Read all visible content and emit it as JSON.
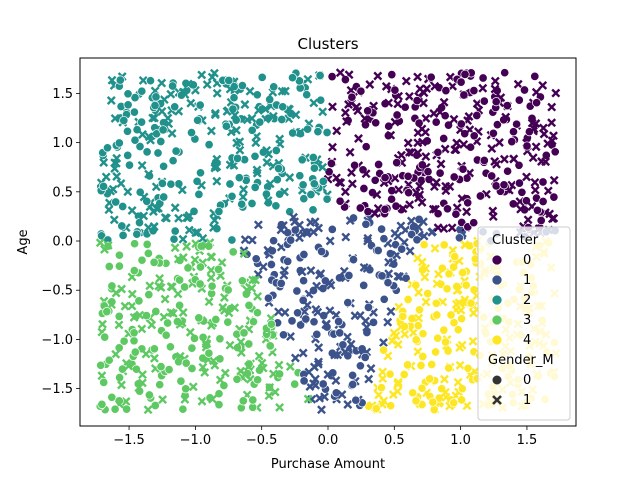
{
  "chart_data": {
    "type": "scatter",
    "title": "Clusters",
    "xlabel": "Purchase Amount",
    "ylabel": "Age",
    "xlim": [
      -1.87,
      1.87
    ],
    "ylim": [
      -1.88,
      1.86
    ],
    "xticks": [
      -1.5,
      -1.0,
      -0.5,
      0.0,
      0.5,
      1.0,
      1.5
    ],
    "xtick_labels": [
      "−1.5",
      "−1.0",
      "−0.5",
      "0.0",
      "0.5",
      "1.0",
      "1.5"
    ],
    "yticks": [
      -1.5,
      -1.0,
      -0.5,
      0.0,
      0.5,
      1.0,
      1.5
    ],
    "ytick_labels": [
      "−1.5",
      "−1.0",
      "−0.5",
      "0.0",
      "0.5",
      "1.0",
      "1.5"
    ],
    "grid": false,
    "legend_position": "lower-right",
    "hue": {
      "title": "Cluster",
      "entries": [
        {
          "label": "0",
          "color": "#440154"
        },
        {
          "label": "1",
          "color": "#3b528b"
        },
        {
          "label": "2",
          "color": "#21918c"
        },
        {
          "label": "3",
          "color": "#5ec962"
        },
        {
          "label": "4",
          "color": "#fde725"
        }
      ]
    },
    "style": {
      "title": "Gender_M",
      "entries": [
        {
          "label": "0",
          "marker": "circle"
        },
        {
          "label": "1",
          "marker": "x"
        }
      ]
    },
    "regions": [
      {
        "cluster": "0",
        "x_range": [
          0.0,
          1.7
        ],
        "y_range": [
          0.15,
          1.7
        ],
        "description": "upper right"
      },
      {
        "cluster": "1",
        "x_range": [
          -0.75,
          0.75
        ],
        "y_range": [
          -1.7,
          0.25
        ],
        "description": "center wedge"
      },
      {
        "cluster": "2",
        "x_range": [
          -1.7,
          0.0
        ],
        "y_range": [
          0.0,
          1.7
        ],
        "description": "upper left"
      },
      {
        "cluster": "3",
        "x_range": [
          -1.7,
          -0.3
        ],
        "y_range": [
          -1.7,
          0.0
        ],
        "description": "lower left"
      },
      {
        "cluster": "4",
        "x_range": [
          0.3,
          1.7
        ],
        "y_range": [
          -1.7,
          0.0
        ],
        "description": "lower right"
      }
    ]
  }
}
